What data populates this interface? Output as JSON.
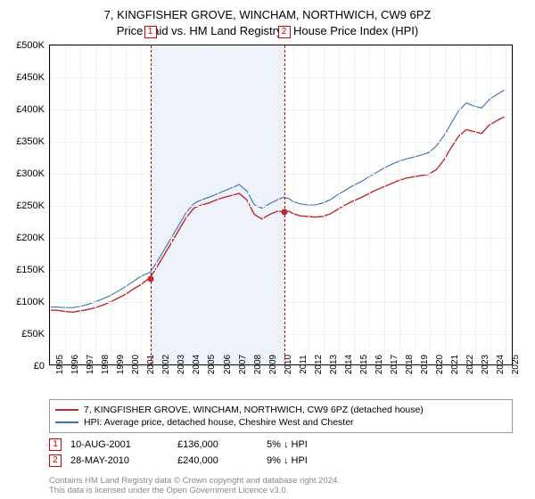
{
  "title": {
    "line1": "7, KINGFISHER GROVE, WINCHAM, NORTHWICH, CW9 6PZ",
    "line2": "Price paid vs. HM Land Registry's House Price Index (HPI)"
  },
  "chart": {
    "type": "line",
    "background_color": "#ffffff",
    "grid_color": "#f0f0f0",
    "border_color": "#000000",
    "x_years": [
      1995,
      1996,
      1997,
      1998,
      1999,
      2000,
      2001,
      2002,
      2003,
      2004,
      2005,
      2006,
      2007,
      2008,
      2009,
      2010,
      2011,
      2012,
      2013,
      2014,
      2015,
      2016,
      2017,
      2018,
      2019,
      2020,
      2021,
      2022,
      2023,
      2024,
      2025
    ],
    "xlim": [
      1995,
      2025.5
    ],
    "ylim": [
      0,
      500000
    ],
    "ytick_step": 50000,
    "yticks": [
      "£0",
      "£50K",
      "£100K",
      "£150K",
      "£200K",
      "£250K",
      "£300K",
      "£350K",
      "£400K",
      "£450K",
      "£500K"
    ],
    "shade_band": {
      "from_year": 2001.6,
      "to_year": 2010.4,
      "color": "#eef2fa"
    },
    "series": [
      {
        "name": "property",
        "color": "#c1272d",
        "width": 1.4,
        "points": [
          [
            1995.0,
            85000
          ],
          [
            1995.5,
            85000
          ],
          [
            1996.0,
            83000
          ],
          [
            1996.5,
            82000
          ],
          [
            1997.0,
            84000
          ],
          [
            1997.5,
            86000
          ],
          [
            1998.0,
            89000
          ],
          [
            1998.5,
            93000
          ],
          [
            1999.0,
            98000
          ],
          [
            1999.5,
            104000
          ],
          [
            2000.0,
            110000
          ],
          [
            2000.5,
            118000
          ],
          [
            2001.0,
            125000
          ],
          [
            2001.6,
            136000
          ],
          [
            2002.0,
            150000
          ],
          [
            2002.5,
            170000
          ],
          [
            2003.0,
            190000
          ],
          [
            2003.5,
            210000
          ],
          [
            2004.0,
            230000
          ],
          [
            2004.5,
            245000
          ],
          [
            2005.0,
            250000
          ],
          [
            2005.5,
            253000
          ],
          [
            2006.0,
            258000
          ],
          [
            2006.5,
            262000
          ],
          [
            2007.0,
            265000
          ],
          [
            2007.5,
            268000
          ],
          [
            2008.0,
            258000
          ],
          [
            2008.5,
            235000
          ],
          [
            2009.0,
            228000
          ],
          [
            2009.5,
            235000
          ],
          [
            2010.0,
            240000
          ],
          [
            2010.4,
            240000
          ],
          [
            2010.8,
            240000
          ],
          [
            2011.0,
            237000
          ],
          [
            2011.5,
            233000
          ],
          [
            2012.0,
            232000
          ],
          [
            2012.5,
            231000
          ],
          [
            2013.0,
            232000
          ],
          [
            2013.5,
            236000
          ],
          [
            2014.0,
            243000
          ],
          [
            2014.5,
            250000
          ],
          [
            2015.0,
            256000
          ],
          [
            2015.5,
            261000
          ],
          [
            2016.0,
            267000
          ],
          [
            2016.5,
            273000
          ],
          [
            2017.0,
            278000
          ],
          [
            2017.5,
            283000
          ],
          [
            2018.0,
            288000
          ],
          [
            2018.5,
            292000
          ],
          [
            2019.0,
            294000
          ],
          [
            2019.5,
            296000
          ],
          [
            2020.0,
            298000
          ],
          [
            2020.5,
            305000
          ],
          [
            2021.0,
            320000
          ],
          [
            2021.5,
            340000
          ],
          [
            2022.0,
            358000
          ],
          [
            2022.5,
            368000
          ],
          [
            2023.0,
            365000
          ],
          [
            2023.5,
            362000
          ],
          [
            2024.0,
            375000
          ],
          [
            2024.5,
            382000
          ],
          [
            2025.0,
            388000
          ]
        ]
      },
      {
        "name": "hpi",
        "color": "#3b6fb0",
        "width": 1.1,
        "points": [
          [
            1995.0,
            90000
          ],
          [
            1995.5,
            90000
          ],
          [
            1996.0,
            89000
          ],
          [
            1996.5,
            89000
          ],
          [
            1997.0,
            91000
          ],
          [
            1997.5,
            94000
          ],
          [
            1998.0,
            98000
          ],
          [
            1998.5,
            103000
          ],
          [
            1999.0,
            108000
          ],
          [
            1999.5,
            115000
          ],
          [
            2000.0,
            122000
          ],
          [
            2000.5,
            130000
          ],
          [
            2001.0,
            138000
          ],
          [
            2001.6,
            144000
          ],
          [
            2002.0,
            158000
          ],
          [
            2002.5,
            178000
          ],
          [
            2003.0,
            198000
          ],
          [
            2003.5,
            218000
          ],
          [
            2004.0,
            238000
          ],
          [
            2004.5,
            252000
          ],
          [
            2005.0,
            258000
          ],
          [
            2005.5,
            262000
          ],
          [
            2006.0,
            267000
          ],
          [
            2006.5,
            272000
          ],
          [
            2007.0,
            277000
          ],
          [
            2007.5,
            282000
          ],
          [
            2008.0,
            272000
          ],
          [
            2008.5,
            250000
          ],
          [
            2009.0,
            245000
          ],
          [
            2009.5,
            252000
          ],
          [
            2010.0,
            258000
          ],
          [
            2010.4,
            262000
          ],
          [
            2010.8,
            260000
          ],
          [
            2011.0,
            256000
          ],
          [
            2011.5,
            252000
          ],
          [
            2012.0,
            250000
          ],
          [
            2012.5,
            250000
          ],
          [
            2013.0,
            253000
          ],
          [
            2013.5,
            258000
          ],
          [
            2014.0,
            266000
          ],
          [
            2014.5,
            273000
          ],
          [
            2015.0,
            280000
          ],
          [
            2015.5,
            286000
          ],
          [
            2016.0,
            293000
          ],
          [
            2016.5,
            300000
          ],
          [
            2017.0,
            307000
          ],
          [
            2017.5,
            313000
          ],
          [
            2018.0,
            318000
          ],
          [
            2018.5,
            322000
          ],
          [
            2019.0,
            325000
          ],
          [
            2019.5,
            328000
          ],
          [
            2020.0,
            332000
          ],
          [
            2020.5,
            342000
          ],
          [
            2021.0,
            358000
          ],
          [
            2021.5,
            378000
          ],
          [
            2022.0,
            398000
          ],
          [
            2022.5,
            410000
          ],
          [
            2023.0,
            405000
          ],
          [
            2023.5,
            402000
          ],
          [
            2024.0,
            415000
          ],
          [
            2024.5,
            423000
          ],
          [
            2025.0,
            430000
          ]
        ]
      }
    ],
    "sales": [
      {
        "idx": "1",
        "year": 2001.6,
        "price": 136000
      },
      {
        "idx": "2",
        "year": 2010.4,
        "price": 240000
      }
    ]
  },
  "legend": {
    "rows": [
      {
        "color": "#c1272d",
        "label": "7, KINGFISHER GROVE, WINCHAM, NORTHWICH, CW9 6PZ (detached house)"
      },
      {
        "color": "#3b6fb0",
        "label": "HPI: Average price, detached house, Cheshire West and Chester"
      }
    ]
  },
  "sale_table": [
    {
      "idx": "1",
      "date": "10-AUG-2001",
      "price": "£136,000",
      "diff": "5% ↓ HPI"
    },
    {
      "idx": "2",
      "date": "28-MAY-2010",
      "price": "£240,000",
      "diff": "9% ↓ HPI"
    }
  ],
  "footnote": {
    "line1": "Contains HM Land Registry data © Crown copyright and database right 2024.",
    "line2": "This data is licensed under the Open Government Licence v3.0."
  }
}
